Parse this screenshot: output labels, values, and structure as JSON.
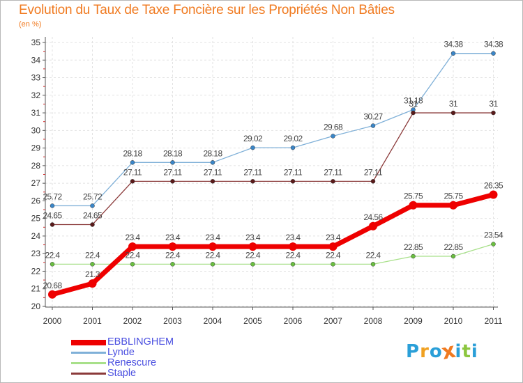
{
  "header": {
    "title": "Evolution du Taux de Taxe Foncière sur les Propriétés Non Bâties",
    "subtitle": "(en %)"
  },
  "logo": {
    "text": "Proxiti",
    "letters": [
      {
        "ch": "P",
        "color": "#2a9fd8"
      },
      {
        "ch": "r",
        "color": "#f0a020"
      },
      {
        "ch": "o",
        "color": "#2a9fd8"
      },
      {
        "ch": "x",
        "color": "#f07a20"
      },
      {
        "ch": "i",
        "color": "#2a9fd8"
      },
      {
        "ch": "t",
        "color": "#8cc63f"
      },
      {
        "ch": "i",
        "color": "#2a9fd8"
      }
    ]
  },
  "chart_data": {
    "type": "line",
    "title": "Evolution du Taux de Taxe Foncière sur les Propriétés Non Bâties",
    "ylabel": "(en %)",
    "xlabel": "",
    "ylim": [
      20,
      35
    ],
    "yticks": [
      20,
      21,
      22,
      23,
      24,
      25,
      26,
      27,
      28,
      29,
      30,
      31,
      32,
      33,
      34,
      35
    ],
    "grid": true,
    "legend_position": "bottom-left",
    "categories": [
      "2000",
      "2001",
      "2002",
      "2003",
      "2004",
      "2005",
      "2006",
      "2007",
      "2008",
      "2009",
      "2010",
      "2011"
    ],
    "series": [
      {
        "name": "Lynde",
        "color": "#7fb0d8",
        "marker": "#3a86c8",
        "width": 1.3,
        "values": [
          25.72,
          25.72,
          28.18,
          28.18,
          28.18,
          29.02,
          29.02,
          29.68,
          30.27,
          31.18,
          34.38,
          34.38
        ],
        "labels": [
          "25.72",
          "25.72",
          "28.18",
          "28.18",
          "28.18",
          "29.02",
          "29.02",
          "29.68",
          "30.27",
          "31.18",
          "34.38",
          "34.38"
        ]
      },
      {
        "name": "Staple",
        "color": "#8b3a3a",
        "marker": "#5a1a1a",
        "width": 1.3,
        "values": [
          24.65,
          24.65,
          27.11,
          27.11,
          27.11,
          27.11,
          27.11,
          27.11,
          27.11,
          31,
          31,
          31
        ],
        "labels": [
          "24.65",
          "24.65",
          "27.11",
          "27.11",
          "27.11",
          "27.11",
          "27.11",
          "27.11",
          "27.11",
          "31",
          "31",
          "31"
        ]
      },
      {
        "name": "Renescure",
        "color": "#a8e08a",
        "marker": "#6abf40",
        "width": 1.3,
        "values": [
          22.4,
          22.4,
          22.4,
          22.4,
          22.4,
          22.4,
          22.4,
          22.4,
          22.4,
          22.85,
          22.85,
          23.54
        ],
        "labels": [
          "22.4",
          "22.4",
          "22.4",
          "22.4",
          "22.4",
          "22.4",
          "22.4",
          "22.4",
          "22.4",
          "22.85",
          "22.85",
          "23.54"
        ]
      },
      {
        "name": "EBBLINGHEM",
        "color": "#ee0000",
        "marker": "#ee0000",
        "width": 7,
        "values": [
          20.68,
          21.3,
          23.4,
          23.4,
          23.4,
          23.4,
          23.4,
          23.4,
          24.56,
          25.75,
          25.75,
          26.35
        ],
        "labels": [
          "20.68",
          "21.3",
          "23.4",
          "23.4",
          "23.4",
          "23.4",
          "23.4",
          "23.4",
          "24.56",
          "25.75",
          "25.75",
          "26.35"
        ]
      }
    ],
    "legend": [
      {
        "name": "EBBLINGHEM",
        "color": "#ee0000"
      },
      {
        "name": "Lynde",
        "color": "#7fb0d8"
      },
      {
        "name": "Renescure",
        "color": "#a8e08a"
      },
      {
        "name": "Staple",
        "color": "#8b3a3a"
      }
    ]
  }
}
